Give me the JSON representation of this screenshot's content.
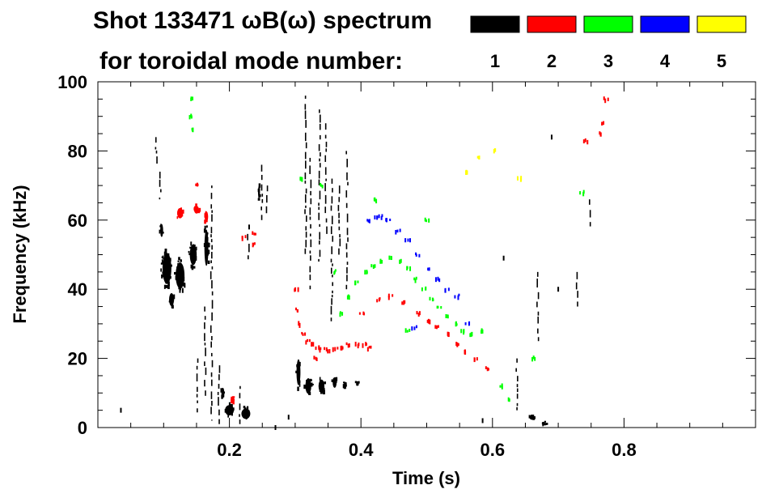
{
  "chart_data": {
    "type": "scatter",
    "title_line1": "Shot 133471 ωB(ω) spectrum",
    "title_line2": "for toroidal mode number:",
    "xlabel": "Time (s)",
    "ylabel": "Frequency (kHz)",
    "xlim": [
      0.0,
      1.0
    ],
    "ylim": [
      0,
      100
    ],
    "x_ticks": [
      0.2,
      0.4,
      0.6,
      0.8
    ],
    "x_tick_labels": [
      "0.2",
      "0.4",
      "0.6",
      "0.8"
    ],
    "y_ticks": [
      0,
      20,
      40,
      60,
      80,
      100
    ],
    "y_tick_labels": [
      "0",
      "20",
      "40",
      "60",
      "80",
      "100"
    ],
    "legend": [
      {
        "label": "1",
        "color": "#000000"
      },
      {
        "label": "2",
        "color": "#ff0000"
      },
      {
        "label": "3",
        "color": "#00ff00"
      },
      {
        "label": "4",
        "color": "#0000ff"
      },
      {
        "label": "5",
        "color": "#ffff00"
      }
    ],
    "series": [
      {
        "name": "n=1",
        "color": "#000000",
        "blobs": [
          {
            "t": 0.105,
            "f": 46,
            "dt": 0.018,
            "df": 12
          },
          {
            "t": 0.125,
            "f": 44,
            "dt": 0.018,
            "df": 10
          },
          {
            "t": 0.145,
            "f": 50,
            "dt": 0.014,
            "df": 8
          },
          {
            "t": 0.165,
            "f": 52,
            "dt": 0.008,
            "df": 14
          },
          {
            "t": 0.097,
            "f": 57,
            "dt": 0.006,
            "df": 5
          },
          {
            "t": 0.112,
            "f": 37,
            "dt": 0.01,
            "df": 5
          },
          {
            "t": 0.2,
            "f": 5,
            "dt": 0.018,
            "df": 4
          },
          {
            "t": 0.225,
            "f": 4,
            "dt": 0.018,
            "df": 4
          },
          {
            "t": 0.19,
            "f": 10,
            "dt": 0.006,
            "df": 4
          },
          {
            "t": 0.245,
            "f": 68,
            "dt": 0.004,
            "df": 5
          },
          {
            "t": 0.305,
            "f": 16,
            "dt": 0.008,
            "df": 10
          },
          {
            "t": 0.32,
            "f": 12,
            "dt": 0.012,
            "df": 6
          },
          {
            "t": 0.34,
            "f": 12,
            "dt": 0.012,
            "df": 5
          },
          {
            "t": 0.36,
            "f": 13,
            "dt": 0.008,
            "df": 4
          },
          {
            "t": 0.375,
            "f": 12,
            "dt": 0.006,
            "df": 2
          },
          {
            "t": 0.395,
            "f": 13,
            "dt": 0.007,
            "df": 1
          },
          {
            "t": 0.66,
            "f": 3,
            "dt": 0.01,
            "df": 2
          },
          {
            "t": 0.68,
            "f": 1,
            "dt": 0.008,
            "df": 1
          }
        ],
        "streaks": [
          {
            "t": 0.088,
            "f0": 76,
            "f1": 84
          },
          {
            "t": 0.094,
            "f0": 66,
            "f1": 74
          },
          {
            "t": 0.15,
            "f0": 4,
            "f1": 20
          },
          {
            "t": 0.162,
            "f0": 8,
            "f1": 35
          },
          {
            "t": 0.172,
            "f0": 2,
            "f1": 70
          },
          {
            "t": 0.183,
            "f0": 1,
            "f1": 18
          },
          {
            "t": 0.215,
            "f0": 1,
            "f1": 12
          },
          {
            "t": 0.228,
            "f0": 48,
            "f1": 56
          },
          {
            "t": 0.248,
            "f0": 60,
            "f1": 76
          },
          {
            "t": 0.256,
            "f0": 62,
            "f1": 70
          },
          {
            "t": 0.315,
            "f0": 50,
            "f1": 96
          },
          {
            "t": 0.322,
            "f0": 40,
            "f1": 78
          },
          {
            "t": 0.336,
            "f0": 48,
            "f1": 92
          },
          {
            "t": 0.346,
            "f0": 56,
            "f1": 88
          },
          {
            "t": 0.355,
            "f0": 30,
            "f1": 72
          },
          {
            "t": 0.366,
            "f0": 50,
            "f1": 70
          },
          {
            "t": 0.378,
            "f0": 40,
            "f1": 80
          },
          {
            "t": 0.636,
            "f0": 4,
            "f1": 20
          },
          {
            "t": 0.668,
            "f0": 25,
            "f1": 45
          },
          {
            "t": 0.728,
            "f0": 35,
            "f1": 45
          },
          {
            "t": 0.747,
            "f0": 58,
            "f1": 66
          }
        ],
        "dots": [
          {
            "t": 0.035,
            "f": 5
          },
          {
            "t": 0.23,
            "f": 58
          },
          {
            "t": 0.27,
            "f": 0
          },
          {
            "t": 0.29,
            "f": 3
          },
          {
            "t": 0.585,
            "f": 2
          },
          {
            "t": 0.617,
            "f": 49
          },
          {
            "t": 0.69,
            "f": 84
          },
          {
            "t": 0.7,
            "f": 40
          }
        ]
      },
      {
        "name": "n=2",
        "color": "#ff0000",
        "blobs": [
          {
            "t": 0.125,
            "f": 62,
            "dt": 0.012,
            "df": 4
          },
          {
            "t": 0.15,
            "f": 63,
            "dt": 0.01,
            "df": 3
          },
          {
            "t": 0.165,
            "f": 61,
            "dt": 0.007,
            "df": 4
          },
          {
            "t": 0.205,
            "f": 8,
            "dt": 0.008,
            "df": 2
          }
        ],
        "points": [
          [
            0.3,
            40
          ],
          [
            0.303,
            34
          ],
          [
            0.307,
            30
          ],
          [
            0.312,
            27
          ],
          [
            0.318,
            25
          ],
          [
            0.325,
            24
          ],
          [
            0.332,
            23
          ],
          [
            0.34,
            22.5
          ],
          [
            0.35,
            22.5
          ],
          [
            0.36,
            23
          ],
          [
            0.37,
            23
          ],
          [
            0.38,
            24
          ],
          [
            0.392,
            24
          ],
          [
            0.404,
            24
          ],
          [
            0.412,
            23
          ],
          [
            0.4,
            33
          ],
          [
            0.425,
            37
          ],
          [
            0.445,
            38
          ],
          [
            0.465,
            36
          ],
          [
            0.485,
            33
          ],
          [
            0.5,
            31
          ],
          [
            0.515,
            29
          ],
          [
            0.53,
            27
          ],
          [
            0.545,
            24
          ],
          [
            0.56,
            22
          ],
          [
            0.575,
            20
          ],
          [
            0.59,
            17
          ],
          [
            0.235,
            56
          ],
          [
            0.237,
            53
          ],
          [
            0.33,
            20
          ],
          [
            0.15,
            70
          ],
          [
            0.22,
            55
          ],
          [
            0.76,
            85
          ],
          [
            0.772,
            95
          ],
          [
            0.74,
            83
          ],
          [
            0.765,
            88
          ]
        ]
      },
      {
        "name": "n=3",
        "color": "#00ff00",
        "points": [
          [
            0.37,
            33
          ],
          [
            0.38,
            38
          ],
          [
            0.392,
            42
          ],
          [
            0.405,
            45
          ],
          [
            0.418,
            47
          ],
          [
            0.432,
            48
          ],
          [
            0.445,
            49
          ],
          [
            0.458,
            48
          ],
          [
            0.47,
            46
          ],
          [
            0.482,
            43
          ],
          [
            0.494,
            40
          ],
          [
            0.506,
            37
          ],
          [
            0.518,
            35
          ],
          [
            0.53,
            32
          ],
          [
            0.542,
            30
          ],
          [
            0.554,
            28
          ],
          [
            0.566,
            27
          ],
          [
            0.14,
            95
          ],
          [
            0.142,
            90
          ],
          [
            0.145,
            86
          ],
          [
            0.34,
            70
          ],
          [
            0.5,
            60
          ],
          [
            0.42,
            66
          ],
          [
            0.47,
            28
          ],
          [
            0.61,
            12
          ],
          [
            0.58,
            28
          ],
          [
            0.625,
            8
          ],
          [
            0.31,
            72
          ],
          [
            0.36,
            45
          ],
          [
            0.66,
            20
          ],
          [
            0.735,
            68
          ]
        ]
      },
      {
        "name": "n=4",
        "color": "#0000ff",
        "points": [
          [
            0.41,
            60
          ],
          [
            0.42,
            61
          ],
          [
            0.43,
            61
          ],
          [
            0.44,
            60
          ],
          [
            0.455,
            57
          ],
          [
            0.47,
            54
          ],
          [
            0.485,
            50
          ],
          [
            0.5,
            46
          ],
          [
            0.515,
            43
          ],
          [
            0.53,
            40
          ],
          [
            0.545,
            38
          ],
          [
            0.48,
            29
          ],
          [
            0.56,
            30
          ]
        ]
      },
      {
        "name": "n=5",
        "color": "#ffff00",
        "points": [
          [
            0.56,
            74
          ],
          [
            0.58,
            78
          ],
          [
            0.6,
            80
          ],
          [
            0.64,
            72
          ]
        ]
      }
    ]
  }
}
